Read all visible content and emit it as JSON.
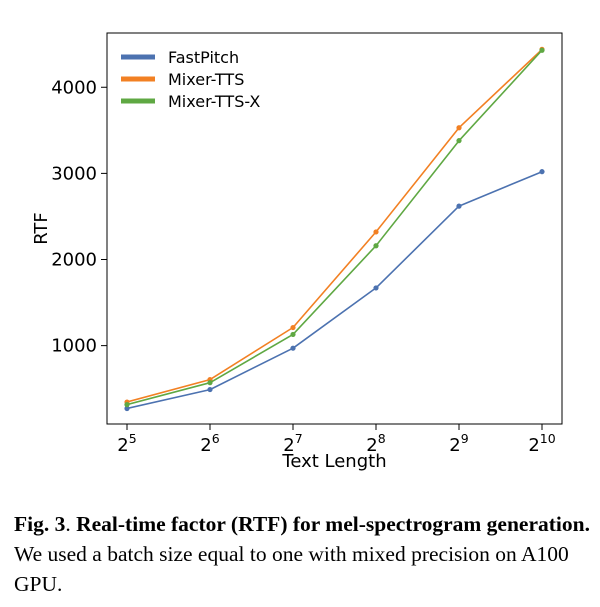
{
  "chart_data": {
    "type": "line",
    "title": "",
    "xlabel": "Text Length",
    "ylabel": "RTF",
    "x_scale": "log2",
    "x": [
      32,
      64,
      128,
      256,
      512,
      1024
    ],
    "x_tick_labels": [
      {
        "base": "2",
        "exp": "5"
      },
      {
        "base": "2",
        "exp": "6"
      },
      {
        "base": "2",
        "exp": "7"
      },
      {
        "base": "2",
        "exp": "8"
      },
      {
        "base": "2",
        "exp": "9"
      },
      {
        "base": "2",
        "exp": "10"
      }
    ],
    "y_ticks": [
      1000,
      2000,
      3000,
      4000
    ],
    "ylim": [
      90,
      4630
    ],
    "grid": false,
    "legend_position": "top-left",
    "series": [
      {
        "name": "FastPitch",
        "color": "#4c72b0",
        "values": [
          270,
          490,
          970,
          1670,
          2620,
          3020
        ]
      },
      {
        "name": "Mixer-TTS",
        "color": "#f28023",
        "values": [
          345,
          605,
          1210,
          2320,
          3530,
          4440
        ]
      },
      {
        "name": "Mixer-TTS-X",
        "color": "#5fa843",
        "values": [
          315,
          570,
          1130,
          2160,
          3380,
          4430
        ]
      }
    ]
  },
  "caption": {
    "label": "Fig. 3",
    "separator": ".",
    "title": "Real-time factor (RTF) for mel-spectrogram generation.",
    "body": "We used a batch size equal to one with mixed precision on A100 GPU."
  }
}
